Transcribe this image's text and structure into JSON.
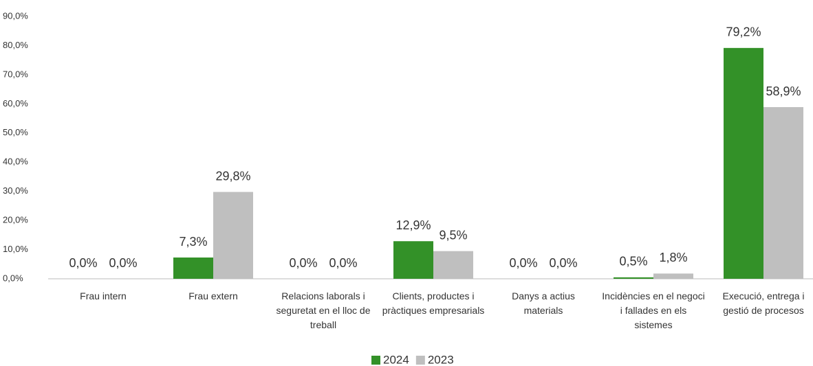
{
  "chart_data": {
    "type": "bar",
    "categories": [
      "Frau intern",
      "Frau extern",
      "Relacions laborals i seguretat en el lloc de treball",
      "Clients, productes i pràctiques empresarials",
      "Danys a actius materials",
      "Incidències en el negoci i  fallades en els sistemes",
      "Execució, entrega i gestió de procesos"
    ],
    "series": [
      {
        "name": "2024",
        "color": "#339128",
        "values": [
          0.0,
          7.3,
          0.0,
          12.9,
          0.0,
          0.5,
          79.2
        ],
        "value_labels": [
          "0,0%",
          "7,3%",
          "0,0%",
          "12,9%",
          "0,0%",
          "0,5%",
          "79,2%"
        ]
      },
      {
        "name": "2023",
        "color": "#bfbfbf",
        "values": [
          0.0,
          29.8,
          0.0,
          9.5,
          0.0,
          1.8,
          58.9
        ],
        "value_labels": [
          "0,0%",
          "29,8%",
          "0,0%",
          "9,5%",
          "0,0%",
          "1,8%",
          "58,9%"
        ]
      }
    ],
    "ylim": [
      0,
      90
    ],
    "yticks": [
      {
        "value": 0,
        "label": "0,0%"
      },
      {
        "value": 10,
        "label": "10,0%"
      },
      {
        "value": 20,
        "label": "20,0%"
      },
      {
        "value": 30,
        "label": "30,0%"
      },
      {
        "value": 40,
        "label": "40,0%"
      },
      {
        "value": 50,
        "label": "50,0%"
      },
      {
        "value": 60,
        "label": "60,0%"
      },
      {
        "value": 70,
        "label": "70,0%"
      },
      {
        "value": 80,
        "label": "80,0%"
      },
      {
        "value": 90,
        "label": "90,0%"
      }
    ],
    "grid": false,
    "legend": "bottom"
  }
}
